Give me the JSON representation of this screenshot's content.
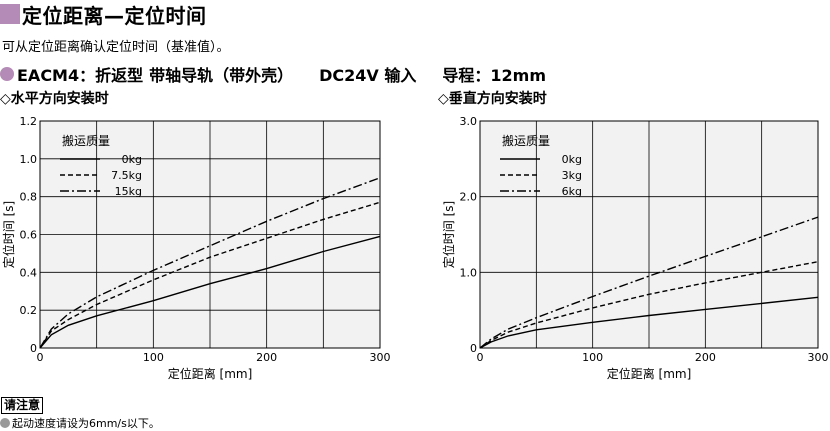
{
  "header": {
    "title": "定位距离—定位时间",
    "intro": "可从定位距离确认定位时间（基准值）。"
  },
  "spec": {
    "model": "EACM4",
    "parts": [
      "：折返型",
      "带轴导轨（带外壳）",
      "DC24V 输入",
      "导程：12mm"
    ]
  },
  "colors": {
    "accent": "#b48ab6",
    "plot_bg": "#f2f2f2"
  },
  "chart_data": [
    {
      "type": "line",
      "subtitle": "◇水平方向安装时",
      "xlabel": "定位距离 [mm]",
      "ylabel": "定位时间 [s]",
      "xlim": [
        0,
        300
      ],
      "ylim": [
        0,
        1.2
      ],
      "xticks": [
        "0",
        "100",
        "200",
        "300"
      ],
      "yticks": [
        "0",
        "0.2",
        "0.4",
        "0.6",
        "0.8",
        "1.0",
        "1.2"
      ],
      "grid": true,
      "legend_title": "搬运质量",
      "legend_position": "top-left",
      "series": [
        {
          "name": "0kg",
          "style": "solid",
          "x": [
            0,
            10,
            25,
            50,
            100,
            150,
            200,
            250,
            300
          ],
          "values": [
            0,
            0.07,
            0.12,
            0.17,
            0.25,
            0.34,
            0.42,
            0.51,
            0.59
          ]
        },
        {
          "name": "7.5kg",
          "style": "dashed",
          "x": [
            0,
            10,
            25,
            50,
            100,
            150,
            200,
            250,
            300
          ],
          "values": [
            0,
            0.09,
            0.15,
            0.23,
            0.36,
            0.48,
            0.58,
            0.68,
            0.77
          ]
        },
        {
          "name": "15kg",
          "style": "dashdot",
          "x": [
            0,
            10,
            25,
            50,
            100,
            150,
            200,
            250,
            300
          ],
          "values": [
            0,
            0.1,
            0.18,
            0.27,
            0.41,
            0.54,
            0.67,
            0.79,
            0.9
          ]
        }
      ]
    },
    {
      "type": "line",
      "subtitle": "◇垂直方向安装时",
      "xlabel": "定位距离 [mm]",
      "ylabel": "定位时间 [s]",
      "xlim": [
        0,
        300
      ],
      "ylim": [
        0,
        3.0
      ],
      "xticks": [
        "0",
        "100",
        "200",
        "300"
      ],
      "yticks": [
        "0",
        "1.0",
        "2.0",
        "3.0"
      ],
      "grid": true,
      "legend_title": "搬运质量",
      "legend_position": "top-left",
      "series": [
        {
          "name": "0kg",
          "style": "solid",
          "x": [
            0,
            10,
            25,
            50,
            100,
            150,
            200,
            250,
            300
          ],
          "values": [
            0,
            0.08,
            0.16,
            0.24,
            0.34,
            0.43,
            0.51,
            0.59,
            0.67
          ]
        },
        {
          "name": "3kg",
          "style": "dashed",
          "x": [
            0,
            10,
            25,
            50,
            100,
            150,
            200,
            250,
            300
          ],
          "values": [
            0,
            0.1,
            0.21,
            0.33,
            0.53,
            0.71,
            0.86,
            1.0,
            1.14
          ]
        },
        {
          "name": "6kg",
          "style": "dashdot",
          "x": [
            0,
            10,
            25,
            50,
            100,
            150,
            200,
            250,
            300
          ],
          "values": [
            0,
            0.12,
            0.25,
            0.4,
            0.68,
            0.95,
            1.21,
            1.47,
            1.73
          ]
        }
      ]
    }
  ],
  "note": {
    "label": "请注意",
    "text": "起动速度请设为6mm/s以下。"
  }
}
